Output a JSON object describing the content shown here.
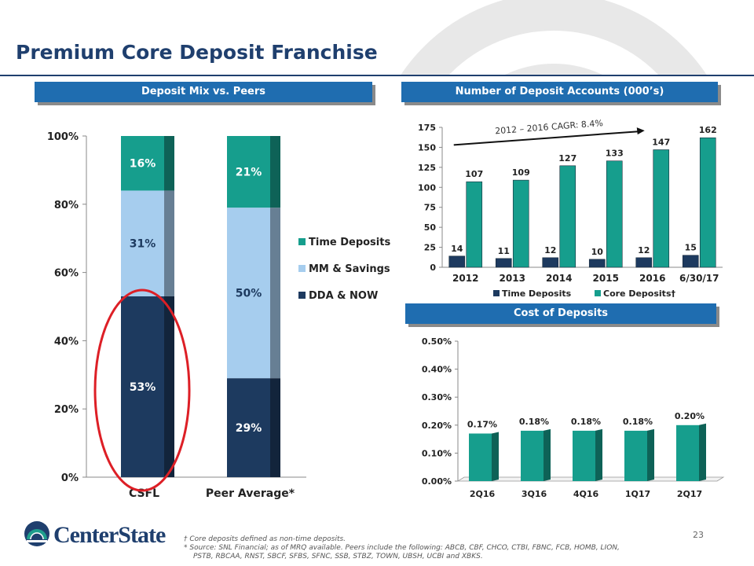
{
  "page": {
    "title": "Premium Core Deposit Franchise",
    "page_number": "23",
    "logo_text": "CenterState"
  },
  "banners": {
    "deposit_mix": "Deposit Mix vs. Peers",
    "deposit_accounts": "Number of Deposit Accounts (000’s)",
    "cost_of_deposits": "Cost of Deposits"
  },
  "footnotes": {
    "note1": "† Core deposits defined as non-time deposits.",
    "note2": "*  Source:  SNL Financial; as of MRQ available.  Peers include the following:  ABCB, CBF, CHCO, CTBI, FBNC, FCB, HOMB, LION,",
    "note3": "PSTB, RBCAA, RNST, SBCF, SFBS, SFNC, SSB, STBZ, TOWN, UBSH, UCBI and XBKS."
  },
  "colors": {
    "title": "#1f3f6e",
    "banner": "#1f6db0",
    "time_deposits": "#169e8d",
    "mm_savings": "#a6cdee",
    "dda_now": "#1d3a5f",
    "highlight": "#dd1f26"
  },
  "chart_data": [
    {
      "type": "bar",
      "stacked": true,
      "title": "Deposit Mix vs. Peers",
      "categories": [
        "CSFL",
        "Peer Average*"
      ],
      "series": [
        {
          "name": "DDA & NOW",
          "values": [
            53,
            29
          ],
          "labels": [
            "53%",
            "29%"
          ]
        },
        {
          "name": "MM & Savings",
          "values": [
            31,
            50
          ],
          "labels": [
            "31%",
            "50%"
          ]
        },
        {
          "name": "Time Deposits",
          "values": [
            16,
            21
          ],
          "labels": [
            "16%",
            "21%"
          ]
        }
      ],
      "legend_order": [
        "Time Deposits",
        "MM & Savings",
        "DDA & NOW"
      ],
      "ylim": [
        0,
        100
      ],
      "yticks": [
        0,
        20,
        40,
        60,
        80,
        100
      ],
      "ytick_labels": [
        "0%",
        "20%",
        "40%",
        "60%",
        "80%",
        "100%"
      ],
      "highlighted_category": "CSFL"
    },
    {
      "type": "bar",
      "title": "Number of Deposit Accounts (000’s)",
      "categories": [
        "2012",
        "2013",
        "2014",
        "2015",
        "2016",
        "6/30/17"
      ],
      "series": [
        {
          "name": "Time Deposits",
          "values": [
            14,
            11,
            12,
            10,
            12,
            15
          ]
        },
        {
          "name": "Core Deposits†",
          "values": [
            107,
            109,
            127,
            133,
            147,
            162
          ]
        }
      ],
      "ylim": [
        0,
        175
      ],
      "yticks": [
        0,
        25,
        50,
        75,
        100,
        125,
        150,
        175
      ],
      "annotation": "2012 – 2016  CAGR: 8.4%"
    },
    {
      "type": "bar",
      "title": "Cost of Deposits",
      "categories": [
        "2Q16",
        "3Q16",
        "4Q16",
        "1Q17",
        "2Q17"
      ],
      "values": [
        0.17,
        0.18,
        0.18,
        0.18,
        0.2
      ],
      "value_labels": [
        "0.17%",
        "0.18%",
        "0.18%",
        "0.18%",
        "0.20%"
      ],
      "ylim": [
        0,
        0.5
      ],
      "yticks": [
        0,
        0.1,
        0.2,
        0.3,
        0.4,
        0.5
      ],
      "ytick_labels": [
        "0.00%",
        "0.10%",
        "0.20%",
        "0.30%",
        "0.40%",
        "0.50%"
      ]
    }
  ]
}
